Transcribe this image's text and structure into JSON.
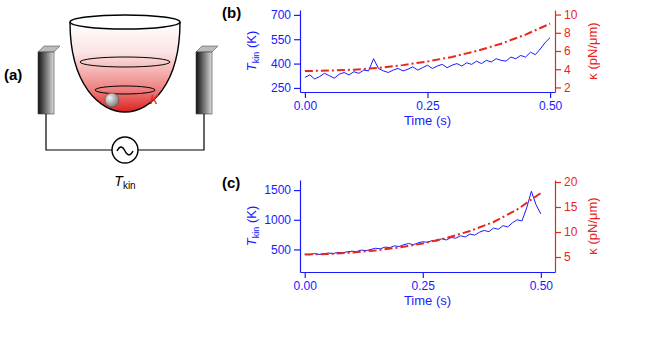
{
  "diagram": {
    "panel": "(a)",
    "stiffness_label": "κ",
    "source_label": {
      "base": "T",
      "sub": "kin"
    }
  },
  "chart_data": [
    {
      "type": "line",
      "panel": "(b)",
      "xlabel": "Time (s)",
      "ylabel": {
        "base": "T",
        "sub": "kin",
        "suffix": " (K)"
      },
      "y2label": "κ (pN/μm)",
      "xlim": [
        -0.01,
        0.51
      ],
      "xticks": [
        {
          "value": 0,
          "label": "0.00"
        },
        {
          "value": 0.25,
          "label": "0.25"
        },
        {
          "value": 0.5,
          "label": "0.50"
        }
      ],
      "ylim": [
        225,
        730
      ],
      "yticks": [
        250,
        400,
        550,
        700
      ],
      "y2lim": [
        1.5,
        10.5
      ],
      "y2ticks": [
        2,
        4,
        6,
        8,
        10
      ],
      "series": [
        {
          "color": "#1a1aff",
          "x": [
            0,
            0.01,
            0.02,
            0.03,
            0.04,
            0.05,
            0.06,
            0.07,
            0.08,
            0.09,
            0.1,
            0.11,
            0.12,
            0.13,
            0.14,
            0.15,
            0.16,
            0.17,
            0.18,
            0.19,
            0.2,
            0.21,
            0.22,
            0.23,
            0.24,
            0.25,
            0.26,
            0.27,
            0.28,
            0.29,
            0.3,
            0.31,
            0.32,
            0.33,
            0.34,
            0.35,
            0.36,
            0.37,
            0.38,
            0.39,
            0.4,
            0.41,
            0.42,
            0.43,
            0.44,
            0.45,
            0.46,
            0.47,
            0.48,
            0.49,
            0.5
          ],
          "values": [
            315,
            330,
            305,
            320,
            340,
            325,
            310,
            335,
            345,
            330,
            350,
            340,
            360,
            355,
            430,
            370,
            355,
            345,
            360,
            370,
            355,
            365,
            380,
            360,
            375,
            390,
            370,
            385,
            395,
            375,
            390,
            400,
            385,
            405,
            395,
            415,
            400,
            420,
            410,
            430,
            420,
            415,
            440,
            430,
            450,
            440,
            470,
            455,
            490,
            530,
            560
          ]
        },
        {
          "color": "#e8261c",
          "axis": "y2",
          "line_style": "dashdot",
          "x": [
            0,
            0.05,
            0.1,
            0.15,
            0.2,
            0.25,
            0.3,
            0.35,
            0.4,
            0.45,
            0.5
          ],
          "values": [
            3.8,
            3.85,
            3.95,
            4.15,
            4.45,
            4.85,
            5.35,
            6.0,
            6.8,
            7.8,
            9.0
          ]
        }
      ]
    },
    {
      "type": "line",
      "panel": "(c)",
      "xlabel": "Time (s)",
      "ylabel": {
        "base": "T",
        "sub": "kin",
        "suffix": " (K)"
      },
      "y2label": "κ (pN/μm)",
      "xlim": [
        -0.01,
        0.53
      ],
      "xticks": [
        {
          "value": 0,
          "label": "0.00"
        },
        {
          "value": 0.25,
          "label": "0.25"
        },
        {
          "value": 0.5,
          "label": "0.50"
        }
      ],
      "ylim": [
        120,
        1670
      ],
      "yticks": [
        500,
        1000,
        1500
      ],
      "y2lim": [
        2,
        20.4
      ],
      "y2ticks": [
        5,
        10,
        15,
        20
      ],
      "series": [
        {
          "color": "#1a1aff",
          "x": [
            0,
            0.01,
            0.02,
            0.03,
            0.04,
            0.05,
            0.06,
            0.07,
            0.08,
            0.09,
            0.1,
            0.11,
            0.12,
            0.13,
            0.14,
            0.15,
            0.16,
            0.17,
            0.18,
            0.19,
            0.2,
            0.21,
            0.22,
            0.23,
            0.24,
            0.25,
            0.26,
            0.27,
            0.28,
            0.29,
            0.3,
            0.31,
            0.32,
            0.33,
            0.34,
            0.35,
            0.36,
            0.37,
            0.38,
            0.39,
            0.4,
            0.41,
            0.42,
            0.43,
            0.44,
            0.45,
            0.46,
            0.47,
            0.48,
            0.49,
            0.5
          ],
          "values": [
            420,
            410,
            430,
            415,
            425,
            440,
            430,
            450,
            445,
            460,
            470,
            465,
            490,
            480,
            500,
            520,
            510,
            540,
            530,
            560,
            550,
            580,
            600,
            580,
            610,
            630,
            620,
            650,
            640,
            680,
            660,
            700,
            690,
            730,
            710,
            760,
            740,
            790,
            820,
            800,
            860,
            840,
            900,
            880,
            950,
            1000,
            980,
            1200,
            1480,
            1250,
            1100
          ]
        },
        {
          "color": "#e8261c",
          "axis": "y2",
          "line_style": "dashdot",
          "x": [
            0,
            0.05,
            0.1,
            0.15,
            0.2,
            0.25,
            0.3,
            0.35,
            0.4,
            0.45,
            0.5
          ],
          "values": [
            5.5,
            5.6,
            5.9,
            6.3,
            6.9,
            7.7,
            8.8,
            10.2,
            12.0,
            14.5,
            17.8
          ]
        }
      ]
    }
  ]
}
